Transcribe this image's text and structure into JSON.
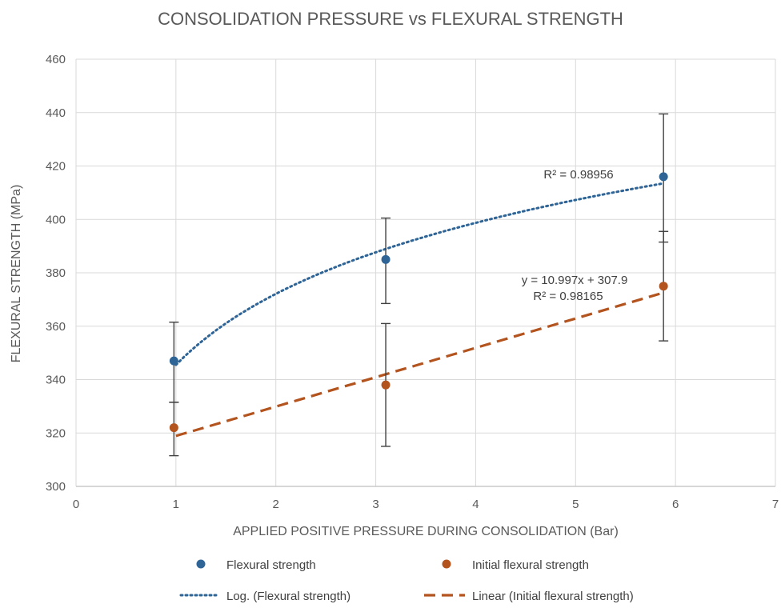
{
  "chart_data": {
    "type": "scatter",
    "title": "CONSOLIDATION PRESSURE vs FLEXURAL STRENGTH",
    "xlabel": "APPLIED POSITIVE PRESSURE DURING CONSOLIDATION (Bar)",
    "ylabel": "FLEXURAL STRENGTH (MPa)",
    "xlim": [
      0,
      7
    ],
    "ylim": [
      300,
      460
    ],
    "x_ticks": [
      0,
      1,
      2,
      3,
      4,
      5,
      6,
      7
    ],
    "y_ticks": [
      300,
      320,
      340,
      360,
      380,
      400,
      420,
      440,
      460
    ],
    "grid": true,
    "legend_position": "bottom",
    "series": [
      {
        "name": "Flexural strength",
        "color": "#2e6496",
        "points": [
          {
            "x": 0.98,
            "y": 347,
            "err_low": 331.5,
            "err_high": 361.5
          },
          {
            "x": 3.1,
            "y": 385,
            "err_low": 368.5,
            "err_high": 400.5
          },
          {
            "x": 5.88,
            "y": 416,
            "err_low": 391.5,
            "err_high": 439.5
          }
        ]
      },
      {
        "name": "Initial flexural strength",
        "color": "#b3531e",
        "points": [
          {
            "x": 0.98,
            "y": 322,
            "err_low": 311.5,
            "err_high": 331.5
          },
          {
            "x": 3.1,
            "y": 338,
            "err_low": 315,
            "err_high": 361
          },
          {
            "x": 5.88,
            "y": 375,
            "err_low": 354.5,
            "err_high": 395.5
          }
        ]
      }
    ],
    "trendlines": [
      {
        "name": "Log.  (Flexural strength)",
        "series": "Flexural strength",
        "kind": "logarithmic",
        "style": "dotted",
        "color": "#2e6496",
        "x_range": [
          1,
          5.88
        ],
        "y_at_x1": 345.5,
        "y_at_xmax": 413.5,
        "label": "R² = 0.98956"
      },
      {
        "name": "Linear  (Initial flexural strength)",
        "series": "Initial flexural strength",
        "kind": "linear",
        "style": "dashed",
        "color": "#b3531e",
        "x_range": [
          1,
          5.88
        ],
        "slope": 10.997,
        "intercept": 307.9,
        "label_lines": [
          "y = 10.997x + 307.9",
          "R² = 0.98165"
        ]
      }
    ]
  }
}
